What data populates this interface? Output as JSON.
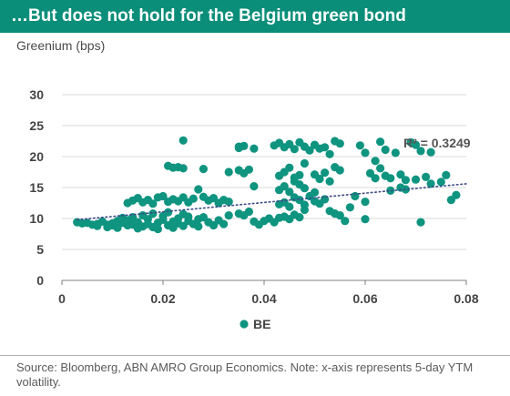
{
  "header": {
    "title": "…But does not hold for the Belgium green bond"
  },
  "footer": {
    "source": "Source: Bloomberg, ABN AMRO Group Economics. Note: x-axis represents 5-day YTM volatility."
  },
  "chart_data": {
    "type": "scatter",
    "ylabel": "Greenium (bps)",
    "xlim": [
      0,
      0.08
    ],
    "ylim": [
      0,
      30
    ],
    "x_ticks": [
      "0",
      "0.02",
      "0.04",
      "0.06",
      "0.08"
    ],
    "y_ticks": [
      "0",
      "5",
      "10",
      "15",
      "20",
      "25",
      "30"
    ],
    "grid": "horizontal",
    "legend_position": "bottom",
    "colors": {
      "series": "#0f9480",
      "trendline": "#3b4a8a",
      "grid": "#d9d9d9"
    },
    "trendline": {
      "type": "linear",
      "label": "R² = 0.3249",
      "x": [
        0.003,
        0.08
      ],
      "y": [
        9.8,
        15.6
      ]
    },
    "series": [
      {
        "name": "BE",
        "points": [
          [
            0.003,
            9.4
          ],
          [
            0.004,
            9.2
          ],
          [
            0.005,
            9.3
          ],
          [
            0.006,
            9.0
          ],
          [
            0.007,
            9.1
          ],
          [
            0.007,
            8.8
          ],
          [
            0.008,
            9.5
          ],
          [
            0.009,
            9.0
          ],
          [
            0.009,
            8.6
          ],
          [
            0.01,
            9.2
          ],
          [
            0.01,
            8.9
          ],
          [
            0.011,
            9.6
          ],
          [
            0.011,
            8.5
          ],
          [
            0.012,
            9.3
          ],
          [
            0.012,
            10.1
          ],
          [
            0.013,
            8.9
          ],
          [
            0.013,
            9.7
          ],
          [
            0.014,
            9.0
          ],
          [
            0.014,
            10.2
          ],
          [
            0.015,
            8.4
          ],
          [
            0.015,
            9.4
          ],
          [
            0.016,
            10.5
          ],
          [
            0.016,
            8.7
          ],
          [
            0.017,
            9.1
          ],
          [
            0.017,
            9.9
          ],
          [
            0.018,
            8.6
          ],
          [
            0.018,
            10.8
          ],
          [
            0.019,
            9.3
          ],
          [
            0.019,
            8.3
          ],
          [
            0.02,
            9.8
          ],
          [
            0.02,
            10.4
          ],
          [
            0.021,
            8.9
          ],
          [
            0.021,
            11.0
          ],
          [
            0.022,
            9.5
          ],
          [
            0.022,
            8.5
          ],
          [
            0.023,
            10.0
          ],
          [
            0.023,
            9.2
          ],
          [
            0.024,
            10.7
          ],
          [
            0.024,
            8.8
          ],
          [
            0.025,
            9.6
          ],
          [
            0.025,
            10.3
          ],
          [
            0.026,
            9.1
          ],
          [
            0.027,
            9.9
          ],
          [
            0.027,
            8.7
          ],
          [
            0.028,
            10.2
          ],
          [
            0.029,
            9.4
          ],
          [
            0.03,
            8.9
          ],
          [
            0.031,
            9.7
          ],
          [
            0.032,
            9.1
          ],
          [
            0.033,
            10.5
          ],
          [
            0.013,
            12.5
          ],
          [
            0.014,
            12.9
          ],
          [
            0.015,
            13.3
          ],
          [
            0.016,
            12.6
          ],
          [
            0.017,
            13.0
          ],
          [
            0.018,
            12.4
          ],
          [
            0.019,
            13.4
          ],
          [
            0.02,
            13.6
          ],
          [
            0.021,
            12.7
          ],
          [
            0.022,
            13.1
          ],
          [
            0.023,
            12.8
          ],
          [
            0.024,
            13.4
          ],
          [
            0.025,
            12.6
          ],
          [
            0.026,
            13.2
          ],
          [
            0.027,
            14.7
          ],
          [
            0.028,
            13.5
          ],
          [
            0.029,
            12.9
          ],
          [
            0.03,
            13.3
          ],
          [
            0.031,
            12.5
          ],
          [
            0.032,
            13.0
          ],
          [
            0.033,
            12.7
          ],
          [
            0.024,
            22.6
          ],
          [
            0.021,
            18.5
          ],
          [
            0.022,
            18.2
          ],
          [
            0.023,
            18.3
          ],
          [
            0.024,
            18.1
          ],
          [
            0.028,
            18.0
          ],
          [
            0.033,
            17.5
          ],
          [
            0.035,
            21.6
          ],
          [
            0.035,
            21.4
          ],
          [
            0.036,
            21.7
          ],
          [
            0.038,
            21.3
          ],
          [
            0.035,
            17.8
          ],
          [
            0.036,
            17.3
          ],
          [
            0.037,
            17.9
          ],
          [
            0.038,
            15.2
          ],
          [
            0.035,
            10.8
          ],
          [
            0.036,
            10.5
          ],
          [
            0.037,
            11.1
          ],
          [
            0.038,
            9.5
          ],
          [
            0.039,
            9.0
          ],
          [
            0.04,
            9.6
          ],
          [
            0.041,
            10.0
          ],
          [
            0.042,
            9.4
          ],
          [
            0.043,
            10.1
          ],
          [
            0.044,
            10.3
          ],
          [
            0.045,
            9.9
          ],
          [
            0.046,
            10.6
          ],
          [
            0.047,
            10.2
          ],
          [
            0.048,
            11.4
          ],
          [
            0.043,
            12.3
          ],
          [
            0.044,
            12.6
          ],
          [
            0.045,
            11.9
          ],
          [
            0.046,
            13.4
          ],
          [
            0.047,
            13.0
          ],
          [
            0.048,
            12.2
          ],
          [
            0.049,
            13.6
          ],
          [
            0.05,
            12.8
          ],
          [
            0.043,
            14.6
          ],
          [
            0.044,
            15.2
          ],
          [
            0.045,
            14.3
          ],
          [
            0.046,
            16.0
          ],
          [
            0.047,
            15.5
          ],
          [
            0.048,
            14.9
          ],
          [
            0.043,
            16.9
          ],
          [
            0.044,
            17.5
          ],
          [
            0.045,
            18.2
          ],
          [
            0.046,
            16.6
          ],
          [
            0.047,
            17.0
          ],
          [
            0.048,
            18.9
          ],
          [
            0.042,
            21.8
          ],
          [
            0.043,
            22.2
          ],
          [
            0.044,
            21.5
          ],
          [
            0.045,
            22.0
          ],
          [
            0.046,
            21.2
          ],
          [
            0.047,
            22.3
          ],
          [
            0.048,
            21.6
          ],
          [
            0.049,
            21.0
          ],
          [
            0.05,
            21.9
          ],
          [
            0.051,
            21.3
          ],
          [
            0.052,
            21.5
          ],
          [
            0.053,
            20.4
          ],
          [
            0.054,
            22.5
          ],
          [
            0.055,
            22.1
          ],
          [
            0.05,
            17.1
          ],
          [
            0.051,
            16.4
          ],
          [
            0.052,
            17.4
          ],
          [
            0.053,
            16.0
          ],
          [
            0.054,
            18.3
          ],
          [
            0.055,
            17.8
          ],
          [
            0.05,
            14.2
          ],
          [
            0.051,
            12.4
          ],
          [
            0.052,
            13.1
          ],
          [
            0.053,
            11.2
          ],
          [
            0.054,
            10.8
          ],
          [
            0.055,
            10.5
          ],
          [
            0.056,
            9.6
          ],
          [
            0.057,
            11.8
          ],
          [
            0.058,
            13.6
          ],
          [
            0.059,
            21.8
          ],
          [
            0.06,
            20.6
          ],
          [
            0.061,
            17.3
          ],
          [
            0.062,
            16.5
          ],
          [
            0.063,
            22.4
          ],
          [
            0.064,
            21.1
          ],
          [
            0.06,
            12.7
          ],
          [
            0.06,
            9.9
          ],
          [
            0.062,
            19.3
          ],
          [
            0.063,
            18.1
          ],
          [
            0.064,
            16.9
          ],
          [
            0.065,
            16.5
          ],
          [
            0.066,
            20.6
          ],
          [
            0.067,
            17.1
          ],
          [
            0.068,
            16.2
          ],
          [
            0.069,
            22.3
          ],
          [
            0.07,
            21.9
          ],
          [
            0.07,
            16.3
          ],
          [
            0.071,
            20.9
          ],
          [
            0.071,
            9.4
          ],
          [
            0.072,
            16.7
          ],
          [
            0.073,
            20.7
          ],
          [
            0.073,
            15.6
          ],
          [
            0.075,
            15.9
          ],
          [
            0.076,
            17.0
          ],
          [
            0.077,
            13.0
          ],
          [
            0.078,
            13.8
          ],
          [
            0.065,
            14.5
          ],
          [
            0.067,
            15.0
          ],
          [
            0.068,
            14.7
          ]
        ]
      }
    ]
  }
}
